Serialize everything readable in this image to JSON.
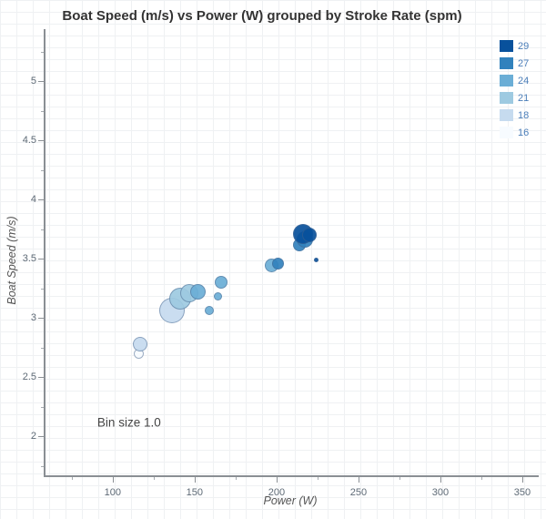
{
  "chart_data": {
    "type": "scatter",
    "title": "Boat Speed (m/s) vs Power (W) grouped by Stroke Rate (spm)",
    "xlabel": "Power (W)",
    "ylabel": "Boat Speed (m/s)",
    "xlim": [
      59,
      360
    ],
    "ylim": [
      1.67,
      5.44
    ],
    "x_ticks": [
      100,
      150,
      200,
      250,
      300,
      350
    ],
    "x_minor_ticks": [
      75,
      125,
      175,
      225,
      275,
      325
    ],
    "y_ticks": [
      2,
      2.5,
      3,
      3.5,
      4,
      4.5,
      5
    ],
    "y_minor_ticks": [
      1.75,
      2.25,
      2.75,
      3.25,
      3.75,
      4.25,
      4.75,
      5.25
    ],
    "grid": "fine light grid over whole figure",
    "legend_position": "top-right",
    "legend": [
      {
        "label": "29",
        "color": "#08519c"
      },
      {
        "label": "27",
        "color": "#3182bd"
      },
      {
        "label": "24",
        "color": "#6baed6"
      },
      {
        "label": "21",
        "color": "#9ecae1"
      },
      {
        "label": "18",
        "color": "#c6dbef"
      },
      {
        "label": "16",
        "color": "#f7fbff"
      }
    ],
    "rate_colors": {
      "29": "#08519c",
      "27": "#3182bd",
      "24": "#6baed6",
      "21": "#9ecae1",
      "18": "#c6dbef",
      "16": "#f7fbff"
    },
    "annotation": {
      "text": "Bin size 1.0",
      "x": 110,
      "y": 2.12
    },
    "points": [
      {
        "power": 116,
        "speed": 2.7,
        "rate": 16,
        "r": 5.5
      },
      {
        "power": 117,
        "speed": 2.78,
        "rate": 18,
        "r": 8
      },
      {
        "power": 136,
        "speed": 3.06,
        "rate": 18,
        "r": 14
      },
      {
        "power": 141,
        "speed": 3.16,
        "rate": 21,
        "r": 12
      },
      {
        "power": 147,
        "speed": 3.21,
        "rate": 21,
        "r": 10
      },
      {
        "power": 152,
        "speed": 3.22,
        "rate": 24,
        "r": 8.5
      },
      {
        "power": 159,
        "speed": 3.06,
        "rate": 24,
        "r": 5
      },
      {
        "power": 164,
        "speed": 3.18,
        "rate": 24,
        "r": 4.5
      },
      {
        "power": 166,
        "speed": 3.3,
        "rate": 24,
        "r": 7
      },
      {
        "power": 197,
        "speed": 3.44,
        "rate": 24,
        "r": 7.5
      },
      {
        "power": 201,
        "speed": 3.46,
        "rate": 27,
        "r": 6.5
      },
      {
        "power": 214,
        "speed": 3.62,
        "rate": 27,
        "r": 7
      },
      {
        "power": 217,
        "speed": 3.66,
        "rate": 27,
        "r": 9
      },
      {
        "power": 216,
        "speed": 3.71,
        "rate": 29,
        "r": 11
      },
      {
        "power": 220,
        "speed": 3.7,
        "rate": 29,
        "r": 8
      },
      {
        "power": 224,
        "speed": 3.49,
        "rate": 29,
        "r": 2.5
      }
    ]
  }
}
